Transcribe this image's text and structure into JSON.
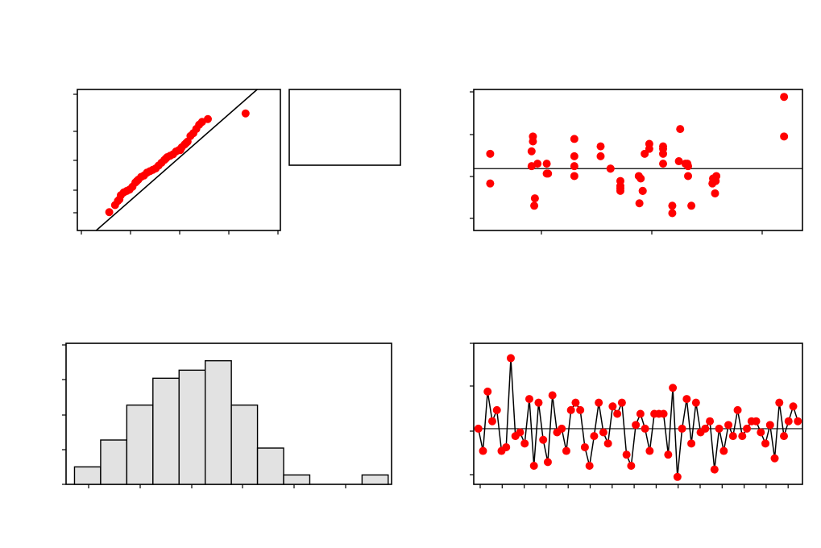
{
  "chart_data": [
    {
      "type": "scatter",
      "xlim": [
        -3,
        4
      ],
      "ylim": [
        -20,
        80
      ],
      "grid": false,
      "fit_line": {
        "x": [
          -2.35,
          3.2
        ],
        "y": [
          -20,
          80
        ]
      },
      "legend_box": "right",
      "x": [
        -1.9,
        -1.7,
        -1.6,
        -1.55,
        -1.5,
        -1.4,
        -1.3,
        -1.2,
        -1.1,
        -1.0,
        -0.95,
        -0.9,
        -0.8,
        -0.7,
        -0.6,
        -0.5,
        -0.4,
        -0.3,
        -0.2,
        -0.1,
        0.0,
        0.05,
        0.1,
        0.2,
        0.3,
        0.4,
        0.5,
        0.55,
        0.6,
        0.7,
        0.75,
        0.8,
        0.9,
        1.0,
        1.1,
        1.2,
        1.3,
        1.5,
        2.8
      ],
      "y": [
        -7,
        -2,
        1,
        2,
        5,
        7,
        8,
        9,
        11,
        14,
        15,
        16,
        18,
        19,
        21,
        22,
        23,
        24,
        26,
        28,
        30,
        31,
        32,
        33,
        34,
        36,
        37,
        37,
        39,
        41,
        42,
        43,
        47,
        49,
        52,
        55,
        57,
        59,
        63
      ]
    },
    {
      "type": "scatter",
      "xlim": [
        0,
        50
      ],
      "ylim": [
        -2.5,
        3.2
      ],
      "refline_y": 0,
      "grid": false,
      "x": [
        2.5,
        2.5,
        9.0,
        9.0,
        8.8,
        8.8,
        9.3,
        9.2,
        11.1,
        11.1,
        9.7,
        11.3,
        15.3,
        15.3,
        15.3,
        15.3,
        19.3,
        19.3,
        20.8,
        20.8,
        22.3,
        22.3,
        22.3,
        22.3,
        25.4,
        25.7,
        25.7,
        25.2,
        25.1,
        26.7,
        26.7,
        26.0,
        28.8,
        28.8,
        28.8,
        28.8,
        30.2,
        30.2,
        31.4,
        31.2,
        32.6,
        32.6,
        32.2,
        33.1,
        32.5,
        36.7,
        36.3,
        36.4,
        36.9,
        36.8,
        47.2,
        47.2
      ],
      "y": [
        0.6,
        -0.6,
        1.3,
        1.1,
        0.7,
        0.1,
        -1.2,
        -1.5,
        0.2,
        -0.2,
        0.2,
        -0.2,
        1.2,
        0.5,
        0.1,
        -0.3,
        0.9,
        0.5,
        0.0,
        0.0,
        -0.5,
        -0.8,
        -0.9,
        -0.7,
        -0.4,
        -0.9,
        -0.9,
        -1.4,
        -0.3,
        1.0,
        0.8,
        0.6,
        0.6,
        0.9,
        0.8,
        0.2,
        -1.8,
        -1.5,
        1.6,
        0.3,
        0.1,
        -0.3,
        0.2,
        -1.5,
        0.2,
        -1.0,
        -0.6,
        -0.4,
        -0.3,
        -0.5,
        2.9,
        1.3
      ]
    },
    {
      "type": "bar",
      "xlim": [
        -11.0,
        66.2
      ],
      "ylim": [
        0,
        10.5
      ],
      "bin_edges": [
        -9.0,
        -2.8,
        3.4,
        9.6,
        15.8,
        22.0,
        28.2,
        34.4,
        40.6,
        46.8,
        53.0,
        59.2,
        65.4
      ],
      "values": [
        1.3,
        3.3,
        5.9,
        7.9,
        8.5,
        9.2,
        5.9,
        2.7,
        0.7,
        0.0,
        0.0,
        0.7
      ],
      "grid": false
    },
    {
      "type": "line",
      "xlim": [
        -1,
        70
      ],
      "ylim": [
        -15,
        23
      ],
      "refline_y": 0,
      "markers": true,
      "grid": false,
      "x": [
        0,
        1,
        2,
        3,
        4,
        5,
        6,
        7,
        8,
        9,
        10,
        11,
        12,
        13,
        14,
        15,
        16,
        17,
        18,
        19,
        20,
        21,
        22,
        23,
        24,
        25,
        26,
        27,
        28,
        29,
        30,
        31,
        32,
        33,
        34,
        35,
        36,
        37,
        38,
        39,
        40,
        41,
        42,
        43,
        44,
        45,
        46,
        47,
        48,
        49,
        50,
        51,
        52,
        53,
        54,
        55,
        56,
        57,
        58,
        59,
        60,
        61,
        62,
        63,
        64,
        65,
        66,
        67,
        68,
        69
      ],
      "y": [
        0,
        -6,
        10,
        2,
        5,
        -6,
        -5,
        19,
        -2,
        -1,
        -4,
        8,
        -10,
        7,
        -3,
        -9,
        9,
        -1,
        0,
        -6,
        5,
        7,
        5,
        -5,
        -10,
        -2,
        7,
        -1,
        -4,
        6,
        4,
        7,
        -7,
        -10,
        1,
        4,
        0,
        -6,
        4,
        4,
        4,
        -7,
        11,
        -13,
        0,
        8,
        -4,
        7,
        -1,
        0,
        2,
        -11,
        0,
        -6,
        1,
        -2,
        5,
        -2,
        0,
        2,
        2,
        -1,
        -4,
        1,
        -8,
        7,
        -2,
        2,
        6,
        2
      ]
    }
  ]
}
